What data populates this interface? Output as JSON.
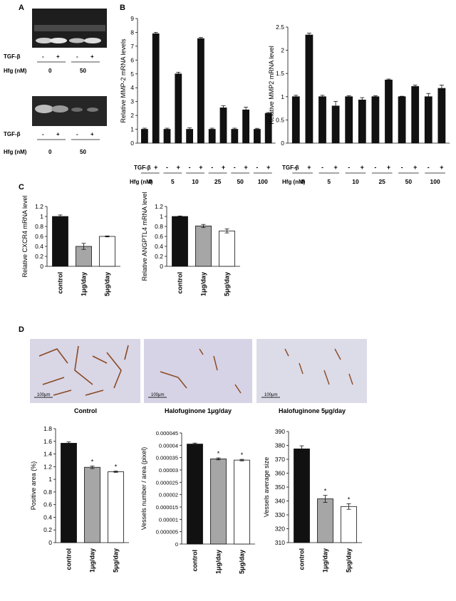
{
  "panels": {
    "A": "A",
    "B": "B",
    "C": "C",
    "D": "D"
  },
  "colors": {
    "black_bar": "#111111",
    "gray_bar": "#a6a6a6",
    "white_bar": "#ffffff",
    "gel_dark": "#1e1e1e",
    "tissue_bg": "#d9d6e6",
    "vessel": "#8a4a22"
  },
  "panel_a": {
    "blots": [
      {
        "row1_label": "TGF-β",
        "row1_values": [
          "-",
          "+",
          "-",
          "+"
        ],
        "row2_label": "Hfg (nM)",
        "row2_values": [
          "0",
          "50"
        ]
      },
      {
        "row1_label": "TGF-β",
        "row1_values": [
          "-",
          "+",
          "-",
          "+"
        ],
        "row2_label": "Hfg (nM)",
        "row2_values": [
          "0",
          "50"
        ]
      }
    ]
  },
  "panel_b": {
    "tgf_label": "TGF-β",
    "hfg_label": "Hfg (nM)",
    "tgf_signs": [
      "-",
      "+"
    ],
    "hfg_values": [
      "0",
      "5",
      "10",
      "25",
      "50",
      "100"
    ]
  },
  "panel_d": {
    "image_captions": [
      "Control",
      "Halofuginone 1μg/day",
      "Halofuginone 5μg/day"
    ],
    "scale_label": "100μm"
  },
  "chart_data": [
    {
      "id": "b_left",
      "type": "bar",
      "ylabel": "Relative MMP-2 mRNA levels",
      "ylim": [
        0,
        9
      ],
      "ticks": [
        0,
        1,
        2,
        3,
        4,
        5,
        6,
        7,
        8,
        9
      ],
      "values": [
        1.0,
        7.9,
        1.0,
        5.0,
        1.0,
        7.55,
        1.0,
        2.55,
        1.0,
        2.4,
        1.0,
        2.15
      ],
      "errors": [
        0.08,
        0.1,
        0.08,
        0.12,
        0.1,
        0.08,
        0.08,
        0.15,
        0.08,
        0.2,
        0.07,
        0.06
      ],
      "colors": [
        "#111111",
        "#111111",
        "#111111",
        "#111111",
        "#111111",
        "#111111",
        "#111111",
        "#111111",
        "#111111",
        "#111111",
        "#111111",
        "#111111"
      ]
    },
    {
      "id": "b_right",
      "type": "bar",
      "ylabel": "Relative MMP2 mRNA level",
      "ylim": [
        0,
        2.5
      ],
      "ticks": [
        0,
        0.5,
        1,
        1.5,
        2,
        2.5
      ],
      "values": [
        1.0,
        2.33,
        1.0,
        0.8,
        1.0,
        0.93,
        1.0,
        1.36,
        1.0,
        1.22,
        1.0,
        1.18
      ],
      "errors": [
        0.03,
        0.04,
        0.03,
        0.1,
        0.02,
        0.05,
        0.02,
        0.02,
        0.01,
        0.03,
        0.07,
        0.07
      ],
      "colors": [
        "#111111",
        "#111111",
        "#111111",
        "#111111",
        "#111111",
        "#111111",
        "#111111",
        "#111111",
        "#111111",
        "#111111",
        "#111111",
        "#111111"
      ]
    },
    {
      "id": "c_left",
      "type": "bar",
      "ylabel": "Relative CXCR4 mRNA level",
      "categories": [
        "control",
        "1μg/day",
        "5μg/day"
      ],
      "ylim": [
        0,
        1.2
      ],
      "ticks": [
        0,
        0.2,
        0.4,
        0.6,
        0.8,
        1,
        1.2
      ],
      "values": [
        1.0,
        0.4,
        0.6
      ],
      "errors": [
        0.03,
        0.06,
        0.01
      ],
      "colors": [
        "#111111",
        "#a6a6a6",
        "#ffffff"
      ]
    },
    {
      "id": "c_right",
      "type": "bar",
      "ylabel": "Relative ANGPTL4 mRNA level",
      "categories": [
        "control",
        "1μg/day",
        "5μg/day"
      ],
      "ylim": [
        0,
        1.2
      ],
      "ticks": [
        0,
        0.2,
        0.4,
        0.6,
        0.8,
        1,
        1.2
      ],
      "values": [
        1.0,
        0.81,
        0.71
      ],
      "errors": [
        0.01,
        0.03,
        0.04
      ],
      "colors": [
        "#111111",
        "#a6a6a6",
        "#ffffff"
      ]
    },
    {
      "id": "d1",
      "type": "bar",
      "ylabel": "Positive area (%)",
      "categories": [
        "control",
        "1μg/day",
        "5μg/day"
      ],
      "ylim": [
        0,
        1.8
      ],
      "ticks": [
        0,
        0.2,
        0.4,
        0.6,
        0.8,
        1,
        1.2,
        1.4,
        1.6,
        1.8
      ],
      "tick_labels": [
        "0",
        "0.2",
        "0.4",
        "0.6",
        "0.8",
        "1",
        "1.2",
        "1.4",
        "1.6",
        "1.8"
      ],
      "values": [
        1.57,
        1.19,
        1.12
      ],
      "errors": [
        0.02,
        0.02,
        0.01
      ],
      "stars": [
        "",
        "*",
        "*"
      ],
      "colors": [
        "#111111",
        "#a6a6a6",
        "#ffffff"
      ]
    },
    {
      "id": "d2",
      "type": "bar",
      "ylabel": "Vessels number / area (pixel)",
      "categories": [
        "control",
        "1μg/day",
        "5μg/day"
      ],
      "ylim": [
        0,
        4.5e-05
      ],
      "ticks": [
        0,
        5e-06,
        1e-05,
        1.5e-05,
        2e-05,
        2.5e-05,
        3e-05,
        3.5e-05,
        4e-05,
        4.5e-05
      ],
      "tick_labels": [
        "0",
        "0.000005",
        "0.00001",
        "0.000015",
        "0.00002",
        "0.000025",
        "0.00003",
        "0.000035",
        "0.00004",
        "0.000045"
      ],
      "values": [
        4.05e-05,
        3.45e-05,
        3.4e-05
      ],
      "errors": [
        4e-07,
        4e-07,
        3e-07
      ],
      "stars": [
        "",
        "*",
        "*"
      ],
      "colors": [
        "#111111",
        "#a6a6a6",
        "#ffffff"
      ]
    },
    {
      "id": "d3",
      "type": "bar",
      "ylabel": "Vessels average size",
      "categories": [
        "control",
        "1μg/day",
        "5μg/day"
      ],
      "ylim": [
        310,
        390
      ],
      "ticks": [
        310,
        320,
        330,
        340,
        350,
        360,
        370,
        380,
        390
      ],
      "tick_labels": [
        "310",
        "320",
        "330",
        "340",
        "350",
        "360",
        "370",
        "380",
        "390"
      ],
      "values": [
        377.5,
        341.5,
        336
      ],
      "errors": [
        2.2,
        2.5,
        2.0
      ],
      "stars": [
        "",
        "*",
        "*"
      ],
      "colors": [
        "#111111",
        "#a6a6a6",
        "#ffffff"
      ]
    }
  ]
}
